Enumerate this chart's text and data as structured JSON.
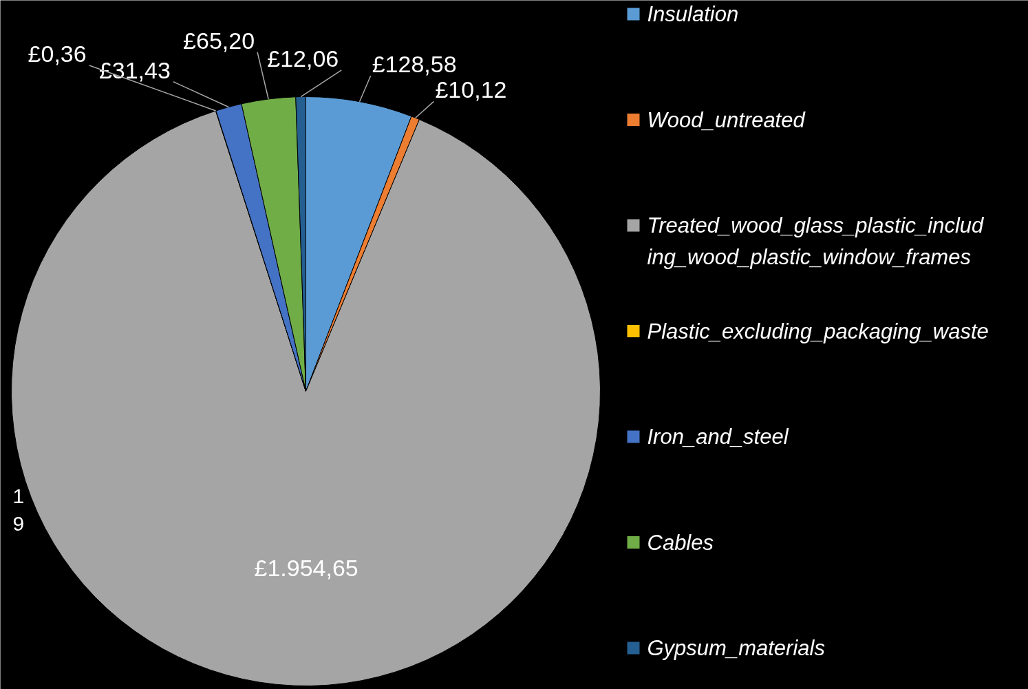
{
  "chart_data": {
    "type": "pie",
    "categories": [
      "Insulation",
      "Wood_untreated",
      "Treated_wood_glass_plastic_including_wood_plastic_window_frames",
      "Plastic_excluding_packaging_waste",
      "Iron_and_steel",
      "Cables",
      "Gypsum_materials"
    ],
    "values": [
      128.58,
      10.12,
      1954.65,
      0.36,
      31.43,
      65.2,
      12.06
    ],
    "value_labels": [
      "£128,58",
      "£10,12",
      "£1.954,65",
      "£0,36",
      "£31,43",
      "£65,20",
      "£12,06"
    ],
    "colors": [
      "#5b9bd5",
      "#ed7d31",
      "#a5a5a5",
      "#ffc000",
      "#4472c4",
      "#70ad47",
      "#255e91"
    ],
    "legend": "right",
    "annotations": [
      "1\n9"
    ]
  }
}
